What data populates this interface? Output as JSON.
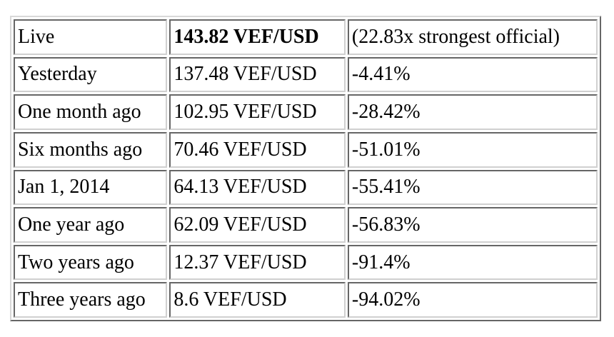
{
  "rows": [
    {
      "label": "Live",
      "rate": "143.82 VEF/USD",
      "change": "(22.83x strongest official)"
    },
    {
      "label": "Yesterday",
      "rate": "137.48 VEF/USD",
      "change": "-4.41%"
    },
    {
      "label": "One month ago",
      "rate": "102.95 VEF/USD",
      "change": "-28.42%"
    },
    {
      "label": "Six months ago",
      "rate": "70.46 VEF/USD",
      "change": "-51.01%"
    },
    {
      "label": "Jan 1, 2014",
      "rate": "64.13 VEF/USD",
      "change": "-55.41%"
    },
    {
      "label": "One year ago",
      "rate": "62.09 VEF/USD",
      "change": "-56.83%"
    },
    {
      "label": "Two years ago",
      "rate": "12.37 VEF/USD",
      "change": "-91.4%"
    },
    {
      "label": "Three years ago",
      "rate": "8.6 VEF/USD",
      "change": "-94.02%"
    }
  ]
}
